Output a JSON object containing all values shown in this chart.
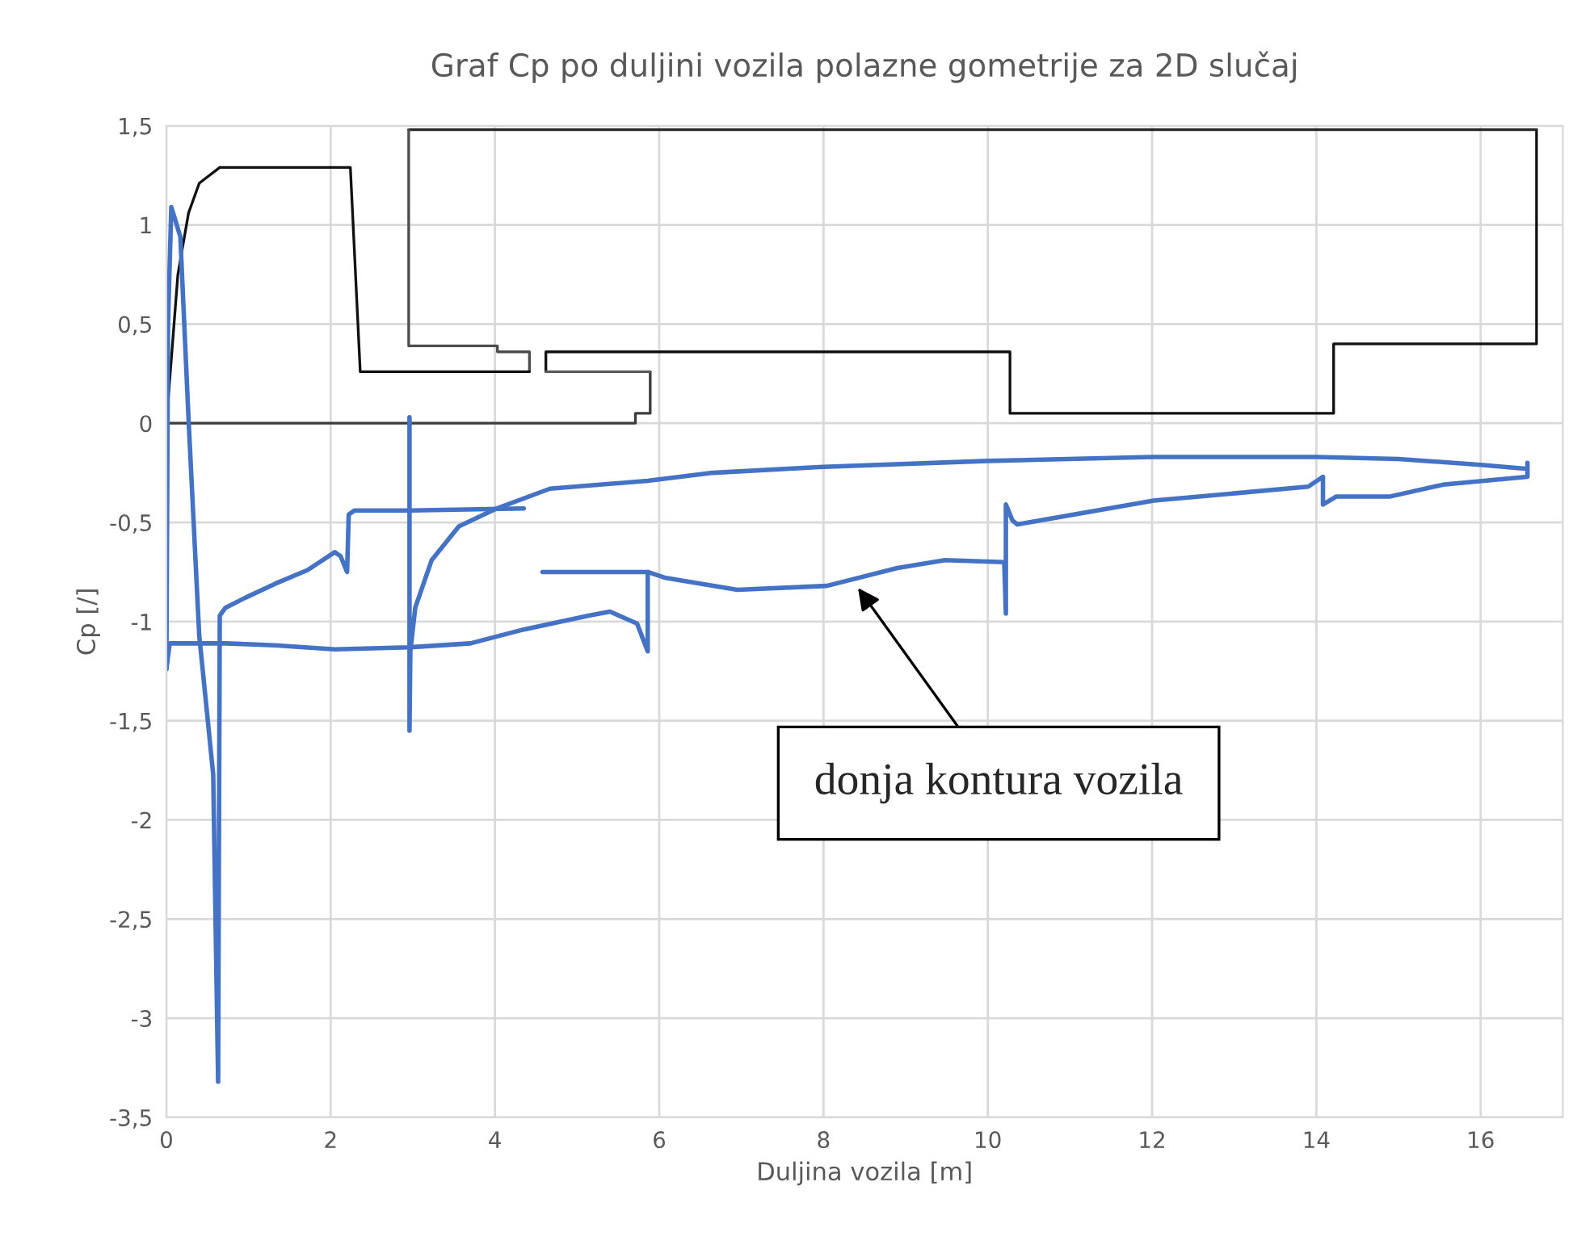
{
  "chart_data": {
    "type": "line",
    "title": "Graf Cp po duljini vozila polazne gometrije za 2D slučaj",
    "xlabel": "Duljina vozila [m]",
    "ylabel": "Cp [/]",
    "xlim": [
      0,
      17
    ],
    "xticks": [
      0,
      2,
      4,
      6,
      8,
      10,
      12,
      14,
      16
    ],
    "ylim": [
      -3.5,
      1.5
    ],
    "yticks": [
      {
        "value": -3.5,
        "label": "-3,5"
      },
      {
        "value": -3,
        "label": "-3"
      },
      {
        "value": -2.5,
        "label": "-2,5"
      },
      {
        "value": -2,
        "label": "-2"
      },
      {
        "value": -1.5,
        "label": "-1,5"
      },
      {
        "value": -1,
        "label": "-1"
      },
      {
        "value": -0.5,
        "label": "-0,5"
      },
      {
        "value": 0,
        "label": "0"
      },
      {
        "value": 0.5,
        "label": "0,5"
      },
      {
        "value": 1,
        "label": "1"
      },
      {
        "value": 1.5,
        "label": "1,5"
      }
    ],
    "grid": true,
    "series": [
      {
        "color": "#111111",
        "x": [
          4.62,
          4.62,
          10.27,
          10.27,
          14.21,
          14.21,
          16.68,
          16.68
        ],
        "values": [
          0.26,
          0.36,
          0.36,
          0.05,
          0.05,
          0.4,
          0.4,
          1.48
        ]
      },
      {
        "color": "#262626",
        "x": [
          2.95,
          16.68
        ],
        "values": [
          1.48,
          1.48
        ]
      },
      {
        "color": "#4d4d4d",
        "x": [
          2.95,
          2.95,
          4.03,
          4.03,
          4.42,
          4.42
        ],
        "values": [
          1.48,
          0.39,
          0.39,
          0.36,
          0.36,
          0.26
        ]
      },
      {
        "color": "#111111",
        "x": [
          0,
          0.14,
          0.27,
          0.4,
          0.65,
          2.24,
          2.36,
          4.42
        ],
        "values": [
          0,
          0.75,
          1.06,
          1.21,
          1.29,
          1.29,
          0.26,
          0.26
        ]
      },
      {
        "color": "#3c3c3c",
        "x": [
          0,
          5.71,
          5.71,
          5.89,
          5.89
        ],
        "values": [
          0,
          0,
          0.05,
          0.05,
          0.26
        ]
      },
      {
        "color": "#5a5a5a",
        "x": [
          4.62,
          5.89
        ],
        "values": [
          0.26,
          0.26
        ]
      },
      {
        "color": "#4472c4",
        "x": [
          0,
          0.02,
          0.06,
          0.17,
          0.27,
          0.4,
          0.57,
          0.63,
          0.65,
          0.72,
          0.96,
          1.32,
          1.72,
          2.05,
          2.12,
          2.2,
          2.22,
          2.29,
          2.92,
          4.35
        ],
        "values": [
          -1.24,
          0.5,
          1.09,
          0.94,
          0.02,
          -1.07,
          -1.77,
          -3.32,
          -0.97,
          -0.93,
          -0.88,
          -0.81,
          -0.74,
          -0.65,
          -0.67,
          -0.75,
          -0.46,
          -0.44,
          -0.44,
          -0.43
        ]
      },
      {
        "color": "#4472c4",
        "x": [
          2.96,
          2.96,
          2.97,
          3.03,
          3.23,
          3.56,
          4.02,
          4.67,
          5.86,
          6.65,
          8,
          10,
          12,
          14,
          15,
          16,
          16.57,
          16.57,
          16.57,
          15.54,
          14.89,
          14.24,
          14.08,
          14.08,
          13.9,
          12.02,
          10.36,
          10.3,
          10.22,
          10.22,
          10.2,
          9.48,
          8.9,
          8.04,
          6.95,
          6.08,
          5.86,
          4.58
        ],
        "values": [
          0.03,
          -1.55,
          -1.15,
          -0.93,
          -0.69,
          -0.52,
          -0.43,
          -0.33,
          -0.29,
          -0.25,
          -0.22,
          -0.19,
          -0.17,
          -0.17,
          -0.18,
          -0.21,
          -0.23,
          -0.2,
          -0.27,
          -0.31,
          -0.37,
          -0.37,
          -0.41,
          -0.27,
          -0.32,
          -0.39,
          -0.51,
          -0.49,
          -0.41,
          -0.96,
          -0.7,
          -0.69,
          -0.73,
          -0.82,
          -0.84,
          -0.78,
          -0.75,
          -0.75
        ]
      },
      {
        "color": "#4472c4",
        "x": [
          5.86,
          5.86,
          5.73,
          5.4,
          5.14,
          4.35,
          3.7,
          2.95,
          2.05,
          1.32,
          0.73,
          0.04,
          0
        ],
        "values": [
          -0.75,
          -1.15,
          -1.01,
          -0.95,
          -0.97,
          -1.04,
          -1.11,
          -1.13,
          -1.14,
          -1.12,
          -1.11,
          -1.11,
          -1.24
        ]
      }
    ],
    "annotations": [
      {
        "text": "donja kontura vozila",
        "x": 8.42,
        "y": -0.83
      }
    ]
  }
}
